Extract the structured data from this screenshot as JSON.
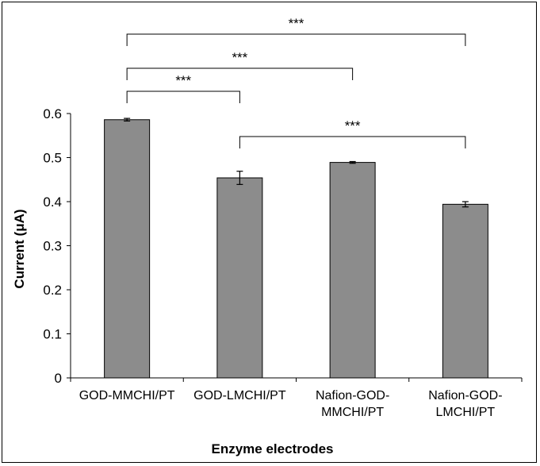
{
  "chart_data": {
    "type": "bar",
    "title": "",
    "xlabel": "Enzyme electrodes",
    "ylabel": "Current (μA)",
    "ylim": [
      0,
      0.6
    ],
    "yticks": [
      "0",
      "0.1",
      "0.2",
      "0.3",
      "0.4",
      "0.5",
      "0.6"
    ],
    "grid": false,
    "categories": [
      [
        "GOD-MMCHI/PT"
      ],
      [
        "GOD-LMCHI/PT"
      ],
      [
        "Nafion-GOD-",
        "MMCHI/PT"
      ],
      [
        "Nafion-GOD-",
        "LMCHI/PT"
      ]
    ],
    "values": [
      0.586,
      0.454,
      0.489,
      0.394
    ],
    "errors": [
      0.003,
      0.015,
      0.002,
      0.006
    ],
    "bar_color": "#8c8c8c",
    "significance": [
      {
        "from": 0,
        "to": 1,
        "label": "***"
      },
      {
        "from": 0,
        "to": 2,
        "label": "***"
      },
      {
        "from": 0,
        "to": 3,
        "label": "***"
      },
      {
        "from": 1,
        "to": 3,
        "label": "***"
      }
    ]
  }
}
